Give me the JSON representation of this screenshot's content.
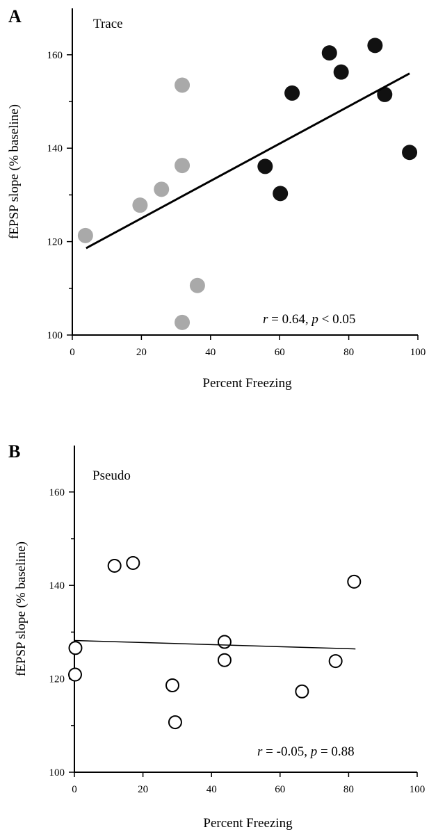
{
  "chart_data": [
    {
      "type": "scatter",
      "panel": "A",
      "label": "Trace",
      "xlabel": "Percent  Freezing",
      "ylabel": "fEPSP slope (% baseline)",
      "xlim": [
        0,
        100
      ],
      "ylim": [
        100,
        170
      ],
      "x_ticks": [
        0,
        20,
        40,
        60,
        80,
        100
      ],
      "y_ticks_labeled": [
        100,
        120,
        140,
        160
      ],
      "y_ticks_minor": [
        110,
        130,
        150
      ],
      "series": [
        {
          "marker": "filled-gray",
          "color": "#a9a9a9",
          "x": [
            3.8,
            19.6,
            25.8,
            31.8,
            31.8,
            36.2,
            31.8
          ],
          "y": [
            121.3,
            127.8,
            131.2,
            153.5,
            136.3,
            110.6,
            102.7
          ]
        },
        {
          "marker": "filled-black",
          "color": "#111111",
          "x": [
            55.8,
            60.2,
            63.6,
            74.4,
            77.8,
            87.6,
            90.4,
            97.6
          ],
          "y": [
            136.1,
            130.3,
            151.8,
            160.4,
            156.3,
            162.0,
            151.5,
            139.1
          ]
        }
      ],
      "fit_line": {
        "x": [
          4,
          97.6
        ],
        "y": [
          118.6,
          156.0
        ],
        "stroke_width": 3
      },
      "stat": {
        "r_symbol": "r",
        "r_text": " = 0.64, ",
        "p_symbol": "p",
        "p_text": " < 0.05"
      }
    },
    {
      "type": "scatter",
      "panel": "B",
      "label": "Pseudo",
      "xlabel": "Percent  Freezing",
      "ylabel": "fEPSP slope (% baseline)",
      "xlim": [
        0,
        100
      ],
      "ylim": [
        100,
        170
      ],
      "x_ticks": [
        0,
        20,
        40,
        60,
        80,
        100
      ],
      "y_ticks_labeled": [
        100,
        120,
        140,
        160
      ],
      "y_ticks_minor": [
        110,
        130,
        150
      ],
      "series": [
        {
          "marker": "open-circle",
          "color": "#000000",
          "x": [
            0.3,
            0.2,
            11.7,
            17.1,
            28.6,
            29.4,
            43.8,
            43.8,
            66.4,
            76.2,
            81.6
          ],
          "y": [
            126.6,
            120.9,
            144.2,
            144.8,
            118.6,
            110.7,
            127.9,
            124.0,
            117.3,
            123.8,
            140.8
          ]
        }
      ],
      "fit_line": {
        "x": [
          0,
          82
        ],
        "y": [
          128.2,
          126.4
        ],
        "stroke_width": 1.5
      },
      "stat": {
        "r_symbol": "r",
        "r_text": " = -0.05, ",
        "p_symbol": "p",
        "p_text": " = 0.88"
      }
    }
  ]
}
